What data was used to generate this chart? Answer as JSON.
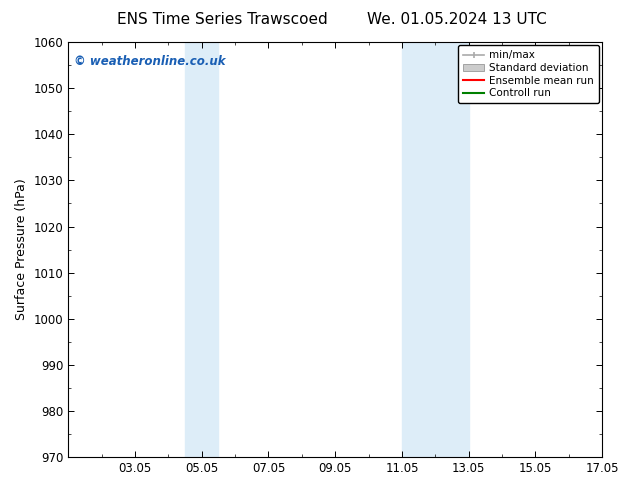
{
  "title_left": "ENS Time Series Trawscoed",
  "title_right": "We. 01.05.2024 13 UTC",
  "ylabel": "Surface Pressure (hPa)",
  "ylim": [
    970,
    1060
  ],
  "yticks": [
    970,
    980,
    990,
    1000,
    1010,
    1020,
    1030,
    1040,
    1050,
    1060
  ],
  "xlim": [
    0,
    16
  ],
  "xtick_labels": [
    "03.05",
    "05.05",
    "07.05",
    "09.05",
    "11.05",
    "13.05",
    "15.05",
    "17.05"
  ],
  "xtick_positions": [
    2,
    4,
    6,
    8,
    10,
    12,
    14,
    16
  ],
  "shaded_bands": [
    {
      "x_start": 3.5,
      "x_end": 4.5,
      "color": "#ddedf8"
    },
    {
      "x_start": 10.0,
      "x_end": 12.0,
      "color": "#ddedf8"
    }
  ],
  "watermark_text": "© weatheronline.co.uk",
  "watermark_color": "#1a5fb4",
  "legend_labels": [
    "min/max",
    "Standard deviation",
    "Ensemble mean run",
    "Controll run"
  ],
  "legend_colors": [
    "#aaaaaa",
    "#cccccc",
    "#ff0000",
    "#008000"
  ],
  "background_color": "#ffffff",
  "axes_bg_color": "#ffffff",
  "title_fontsize": 11,
  "tick_fontsize": 8.5,
  "label_fontsize": 9
}
